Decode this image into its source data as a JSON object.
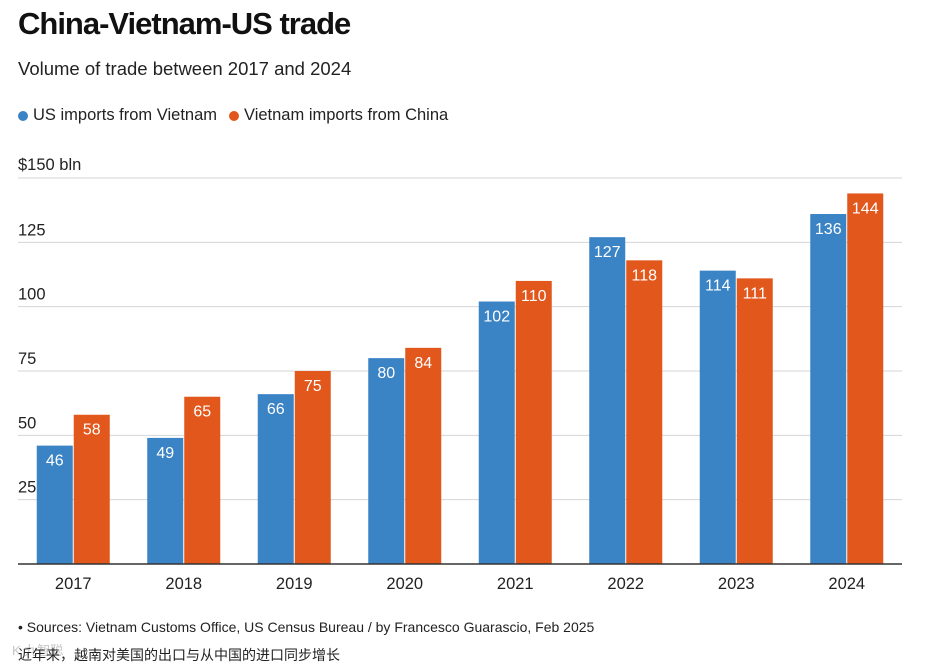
{
  "title": "China-Vietnam-US trade",
  "subtitle": "Volume of trade between 2017 and 2024",
  "legend": [
    {
      "label": "US imports from Vietnam",
      "color": "#3a83c4"
    },
    {
      "label": "Vietnam imports from China",
      "color": "#e2571c"
    }
  ],
  "y_unit_label": "$150 bln",
  "source": "• Sources: Vietnam Customs Office, US Census Bureau / by Francesco Guarascio, Feb 2025",
  "caption": "近年来，越南对美国的出口与从中国的进口同步增长",
  "watermark": "K 九智聪",
  "chart_data": {
    "type": "bar",
    "title": "China-Vietnam-US trade",
    "subtitle": "Volume of trade between 2017 and 2024",
    "categories": [
      "2017",
      "2018",
      "2019",
      "2020",
      "2021",
      "2022",
      "2023",
      "2024"
    ],
    "series": [
      {
        "name": "US imports from Vietnam",
        "color": "#3a83c4",
        "values": [
          46,
          49,
          66,
          80,
          102,
          127,
          114,
          136
        ]
      },
      {
        "name": "Vietnam imports from China",
        "color": "#e2571c",
        "values": [
          58,
          65,
          75,
          84,
          110,
          118,
          111,
          144
        ]
      }
    ],
    "ylim": [
      0,
      150
    ],
    "yticks": [
      25,
      50,
      75,
      100,
      125
    ],
    "ytick_labels": [
      "25",
      "50",
      "75",
      "100",
      "125"
    ],
    "xlabel": "",
    "ylabel": "$150 bln",
    "grid": true,
    "legend_position": "top-left"
  }
}
